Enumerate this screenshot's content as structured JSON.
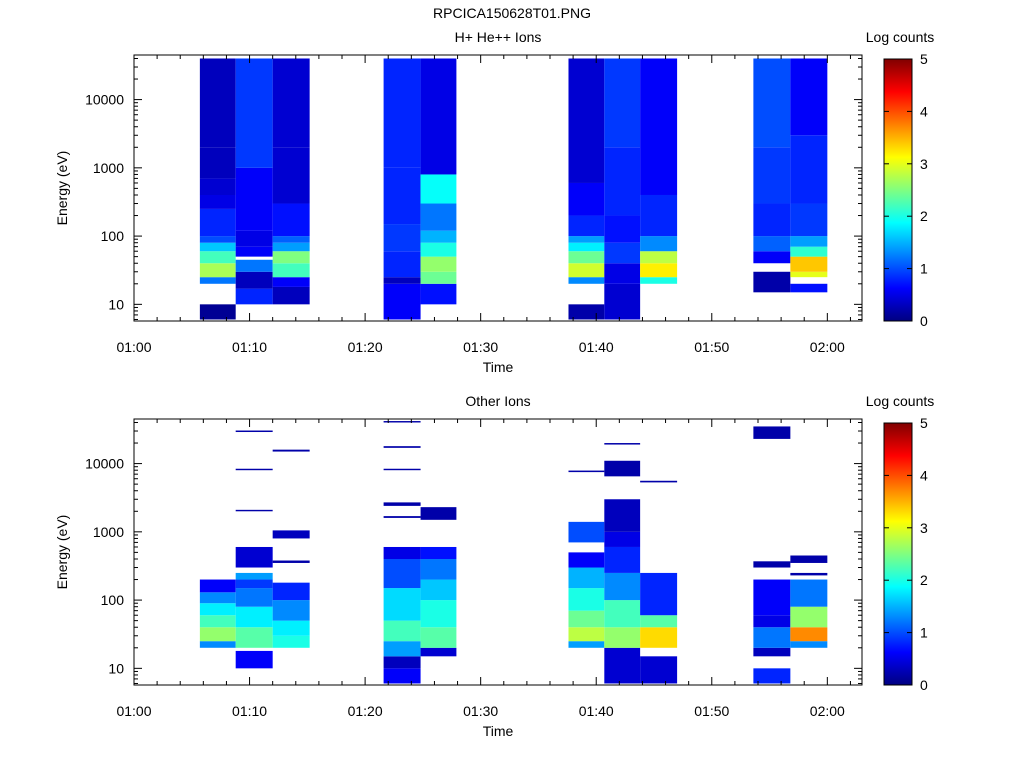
{
  "page_title": "RPCICA150628T01.PNG",
  "colormap": [
    "#000080",
    "#0000ff",
    "#0080ff",
    "#00ffff",
    "#80ff80",
    "#ffff00",
    "#ff8000",
    "#ff0000",
    "#800000"
  ],
  "chart_data": [
    {
      "type": "heatmap",
      "title": "H+ He++ Ions",
      "xlabel": "Time",
      "ylabel": "Energy (eV)",
      "x_tick_labels": [
        "01:00",
        "01:10",
        "01:20",
        "01:30",
        "01:40",
        "01:50",
        "02:00"
      ],
      "x_range_minutes": [
        0,
        63
      ],
      "y_scale": "log",
      "ylim": [
        5.7,
        45000
      ],
      "y_tick_labels": [
        "10",
        "100",
        "1000",
        "10000"
      ],
      "colorbar": {
        "label": "Log counts",
        "range": [
          0,
          5
        ],
        "tick_labels": [
          "0",
          "1",
          "2",
          "3",
          "4",
          "5"
        ]
      },
      "columns": [
        {
          "t_start": 5.7,
          "t_end": 8.8,
          "bins": [
            [
              6,
              10,
              0.1
            ],
            [
              20,
              25,
              1.2
            ],
            [
              25,
              40,
              2.7
            ],
            [
              40,
              60,
              2.2
            ],
            [
              60,
              80,
              1.6
            ],
            [
              80,
              100,
              1.0
            ],
            [
              100,
              250,
              0.8
            ],
            [
              250,
              400,
              0.5
            ],
            [
              400,
              700,
              0.4
            ],
            [
              700,
              2000,
              0.3
            ],
            [
              2000,
              40000,
              0.3
            ]
          ]
        },
        {
          "t_start": 8.8,
          "t_end": 12.0,
          "bins": [
            [
              10,
              17,
              0.8
            ],
            [
              17,
              30,
              0.3
            ],
            [
              30,
              45,
              1.2
            ],
            [
              50,
              70,
              0.6
            ],
            [
              70,
              120,
              0.5
            ],
            [
              120,
              1000,
              0.6
            ],
            [
              1000,
              40000,
              0.9
            ]
          ]
        },
        {
          "t_start": 12.0,
          "t_end": 15.2,
          "bins": [
            [
              10,
              18,
              0.3
            ],
            [
              18,
              25,
              0.6
            ],
            [
              25,
              40,
              2.2
            ],
            [
              40,
              60,
              2.5
            ],
            [
              60,
              80,
              1.4
            ],
            [
              80,
              100,
              1.1
            ],
            [
              100,
              300,
              0.7
            ],
            [
              300,
              2000,
              0.4
            ],
            [
              2000,
              40000,
              0.4
            ]
          ]
        },
        {
          "t_start": 21.6,
          "t_end": 24.8,
          "bins": [
            [
              6,
              20,
              0.6
            ],
            [
              20,
              25,
              0.3
            ],
            [
              25,
              60,
              0.8
            ],
            [
              60,
              150,
              0.9
            ],
            [
              150,
              1000,
              0.8
            ],
            [
              1000,
              40000,
              0.8
            ]
          ]
        },
        {
          "t_start": 24.8,
          "t_end": 27.9,
          "bins": [
            [
              10,
              20,
              0.7
            ],
            [
              20,
              30,
              2.4
            ],
            [
              30,
              50,
              2.6
            ],
            [
              50,
              80,
              2.0
            ],
            [
              80,
              120,
              1.5
            ],
            [
              120,
              300,
              1.2
            ],
            [
              300,
              800,
              1.9
            ],
            [
              800,
              40000,
              0.5
            ]
          ]
        },
        {
          "t_start": 37.6,
          "t_end": 40.7,
          "bins": [
            [
              6,
              10,
              0.2
            ],
            [
              20,
              25,
              1.3
            ],
            [
              25,
              40,
              2.9
            ],
            [
              40,
              60,
              2.4
            ],
            [
              60,
              80,
              1.8
            ],
            [
              80,
              100,
              1.4
            ],
            [
              100,
              200,
              0.8
            ],
            [
              200,
              600,
              0.6
            ],
            [
              600,
              40000,
              0.4
            ]
          ]
        },
        {
          "t_start": 40.7,
          "t_end": 43.8,
          "bins": [
            [
              6,
              20,
              0.4
            ],
            [
              20,
              40,
              0.5
            ],
            [
              40,
              80,
              0.9
            ],
            [
              80,
              200,
              0.7
            ],
            [
              200,
              2000,
              0.8
            ],
            [
              2000,
              40000,
              0.9
            ]
          ]
        },
        {
          "t_start": 43.8,
          "t_end": 47.0,
          "bins": [
            [
              20,
              25,
              2.0
            ],
            [
              25,
              40,
              3.2
            ],
            [
              40,
              60,
              2.8
            ],
            [
              60,
              100,
              1.3
            ],
            [
              100,
              400,
              0.8
            ],
            [
              400,
              40000,
              0.6
            ]
          ]
        },
        {
          "t_start": 53.6,
          "t_end": 56.8,
          "bins": [
            [
              15,
              30,
              0.2
            ],
            [
              40,
              60,
              0.6
            ],
            [
              60,
              100,
              1.1
            ],
            [
              100,
              300,
              0.8
            ],
            [
              300,
              2000,
              0.9
            ],
            [
              2000,
              40000,
              1.0
            ]
          ]
        },
        {
          "t_start": 56.8,
          "t_end": 60.0,
          "bins": [
            [
              15,
              20,
              0.7
            ],
            [
              25,
              30,
              3.0
            ],
            [
              30,
              50,
              3.4
            ],
            [
              50,
              70,
              2.1
            ],
            [
              70,
              100,
              1.4
            ],
            [
              100,
              300,
              0.9
            ],
            [
              300,
              3000,
              0.8
            ],
            [
              3000,
              40000,
              0.6
            ]
          ]
        }
      ]
    },
    {
      "type": "heatmap",
      "title": "Other Ions",
      "xlabel": "Time",
      "ylabel": "Energy (eV)",
      "x_tick_labels": [
        "01:00",
        "01:10",
        "01:20",
        "01:30",
        "01:40",
        "01:50",
        "02:00"
      ],
      "x_range_minutes": [
        0,
        63
      ],
      "y_scale": "log",
      "ylim": [
        5.7,
        45000
      ],
      "y_tick_labels": [
        "10",
        "100",
        "1000",
        "10000"
      ],
      "colorbar": {
        "label": "Log counts",
        "range": [
          0,
          5
        ],
        "tick_labels": [
          "0",
          "1",
          "2",
          "3",
          "4",
          "5"
        ]
      },
      "columns": [
        {
          "t_start": 5.7,
          "t_end": 8.8,
          "bins": [
            [
              20,
              25,
              1.3
            ],
            [
              25,
              40,
              2.6
            ],
            [
              40,
              60,
              2.2
            ],
            [
              60,
              90,
              1.8
            ],
            [
              90,
              130,
              1.3
            ],
            [
              130,
              200,
              0.6
            ]
          ]
        },
        {
          "t_start": 8.8,
          "t_end": 12.0,
          "bins": [
            [
              10,
              18,
              0.6
            ],
            [
              20,
              40,
              2.3
            ],
            [
              40,
              80,
              1.8
            ],
            [
              80,
              150,
              1.2
            ],
            [
              150,
              200,
              0.9
            ],
            [
              200,
              250,
              1.4
            ],
            [
              300,
              600,
              0.4
            ],
            [
              2000,
              2100,
              0.2
            ],
            [
              8000,
              8400,
              0.2
            ],
            [
              29000,
              30500,
              0.2
            ]
          ]
        },
        {
          "t_start": 12.0,
          "t_end": 15.2,
          "bins": [
            [
              20,
              30,
              2.0
            ],
            [
              30,
              50,
              1.8
            ],
            [
              50,
              100,
              1.3
            ],
            [
              100,
              180,
              0.8
            ],
            [
              350,
              380,
              0.2
            ],
            [
              800,
              1050,
              0.3
            ],
            [
              15000,
              16000,
              0.2
            ]
          ]
        },
        {
          "t_start": 21.6,
          "t_end": 24.8,
          "bins": [
            [
              6,
              10,
              0.6
            ],
            [
              10,
              15,
              0.3
            ],
            [
              15,
              25,
              1.4
            ],
            [
              25,
              50,
              2.2
            ],
            [
              50,
              150,
              1.7
            ],
            [
              150,
              400,
              1.0
            ],
            [
              400,
              600,
              0.5
            ],
            [
              1600,
              1700,
              0.2
            ],
            [
              2400,
              2700,
              0.2
            ],
            [
              8000,
              8400,
              0.2
            ],
            [
              17000,
              18000,
              0.2
            ],
            [
              40000,
              42000,
              0.2
            ]
          ]
        },
        {
          "t_start": 24.8,
          "t_end": 27.9,
          "bins": [
            [
              15,
              20,
              0.4
            ],
            [
              20,
              40,
              2.3
            ],
            [
              40,
              100,
              2.0
            ],
            [
              100,
              200,
              1.6
            ],
            [
              200,
              400,
              1.2
            ],
            [
              400,
              600,
              0.7
            ],
            [
              1500,
              2300,
              0.2
            ]
          ]
        },
        {
          "t_start": 37.6,
          "t_end": 40.7,
          "bins": [
            [
              20,
              25,
              1.4
            ],
            [
              25,
              40,
              2.8
            ],
            [
              40,
              70,
              2.4
            ],
            [
              70,
              150,
              2.0
            ],
            [
              150,
              300,
              1.5
            ],
            [
              300,
              500,
              0.6
            ],
            [
              700,
              1400,
              1.0
            ],
            [
              7500,
              7900,
              0.2
            ]
          ]
        },
        {
          "t_start": 40.7,
          "t_end": 43.8,
          "bins": [
            [
              6,
              20,
              0.4
            ],
            [
              20,
              40,
              2.6
            ],
            [
              40,
              100,
              2.2
            ],
            [
              100,
              250,
              1.3
            ],
            [
              250,
              600,
              0.8
            ],
            [
              600,
              1000,
              0.5
            ],
            [
              1000,
              3000,
              0.3
            ],
            [
              6500,
              11000,
              0.2
            ],
            [
              19000,
              20000,
              0.2
            ]
          ]
        },
        {
          "t_start": 43.8,
          "t_end": 47.0,
          "bins": [
            [
              6,
              15,
              0.4
            ],
            [
              20,
              40,
              3.3
            ],
            [
              40,
              60,
              2.3
            ],
            [
              60,
              250,
              0.8
            ],
            [
              5300,
              5600,
              0.2
            ]
          ]
        },
        {
          "t_start": 53.6,
          "t_end": 56.8,
          "bins": [
            [
              6,
              10,
              0.8
            ],
            [
              15,
              20,
              0.3
            ],
            [
              20,
              40,
              1.2
            ],
            [
              40,
              60,
              0.5
            ],
            [
              60,
              200,
              0.6
            ],
            [
              300,
              370,
              0.2
            ],
            [
              23000,
              35000,
              0.2
            ]
          ]
        },
        {
          "t_start": 56.8,
          "t_end": 60.0,
          "bins": [
            [
              20,
              25,
              1.3
            ],
            [
              25,
              40,
              3.7
            ],
            [
              40,
              80,
              2.6
            ],
            [
              80,
              200,
              1.2
            ],
            [
              230,
              250,
              0.2
            ],
            [
              350,
              450,
              0.2
            ]
          ]
        }
      ]
    }
  ]
}
